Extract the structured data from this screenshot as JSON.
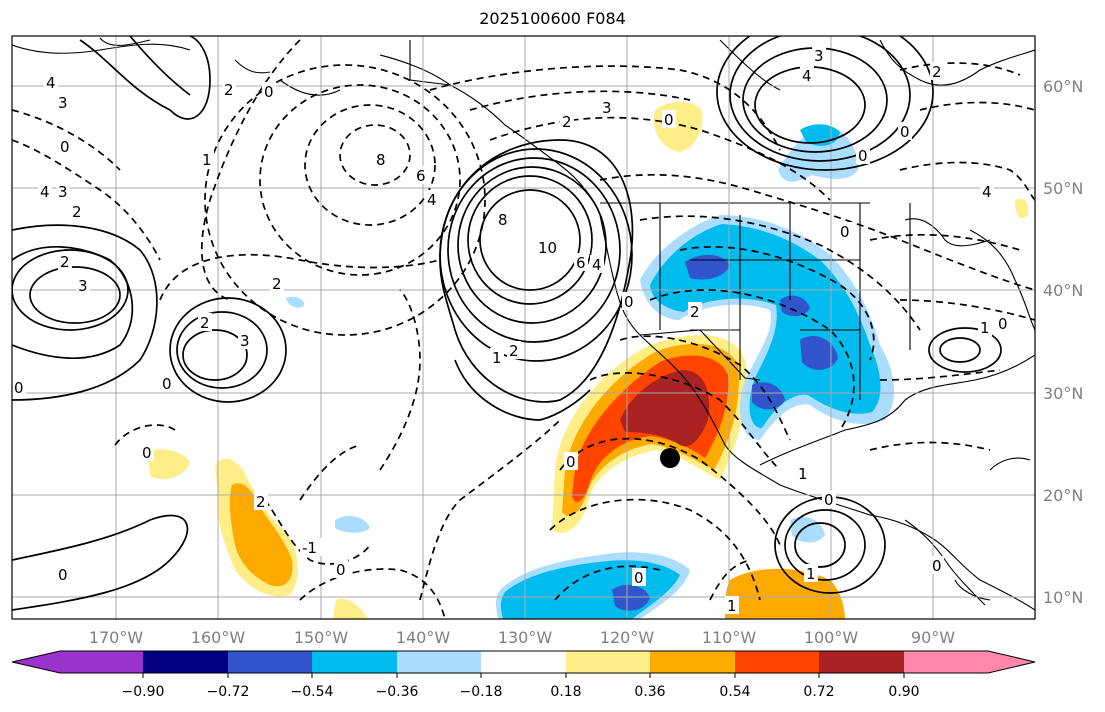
{
  "title": "2025100600 F084",
  "map": {
    "lat_labels": [
      "60°N",
      "50°N",
      "40°N",
      "30°N",
      "20°N",
      "10°N"
    ],
    "lon_labels": [
      "170°W",
      "160°W",
      "150°W",
      "140°W",
      "130°W",
      "120°W",
      "110°W",
      "100°W",
      "90°W"
    ],
    "contour_labels": [
      "4",
      "3",
      "0",
      "2",
      "0",
      "4",
      "3",
      "2",
      "2",
      "3",
      "3",
      "2",
      "0",
      "2",
      "0",
      "1",
      "8",
      "6",
      "4",
      "2",
      "8",
      "10",
      "6",
      "4",
      "0",
      "2",
      "2",
      "1",
      "3",
      "0",
      "3",
      "2",
      "0",
      "0",
      "4",
      "4",
      "0",
      "1",
      "0",
      "1",
      "0",
      "0",
      "0",
      "0",
      "2",
      "1",
      "0",
      "-1",
      "0",
      "1",
      "0"
    ],
    "marker": "storm-center"
  },
  "colorbar": {
    "colors": [
      "#9933cc",
      "#000080",
      "#3355cc",
      "#00bbee",
      "#aaddff",
      "#ffffff",
      "#ffee88",
      "#ffaa00",
      "#ff4400",
      "#aa2222",
      "#ff88aa"
    ],
    "tick_labels": [
      "−0.90",
      "−0.72",
      "−0.54",
      "−0.36",
      "−0.18",
      "0.18",
      "0.36",
      "0.54",
      "0.72",
      "0.90"
    ]
  }
}
